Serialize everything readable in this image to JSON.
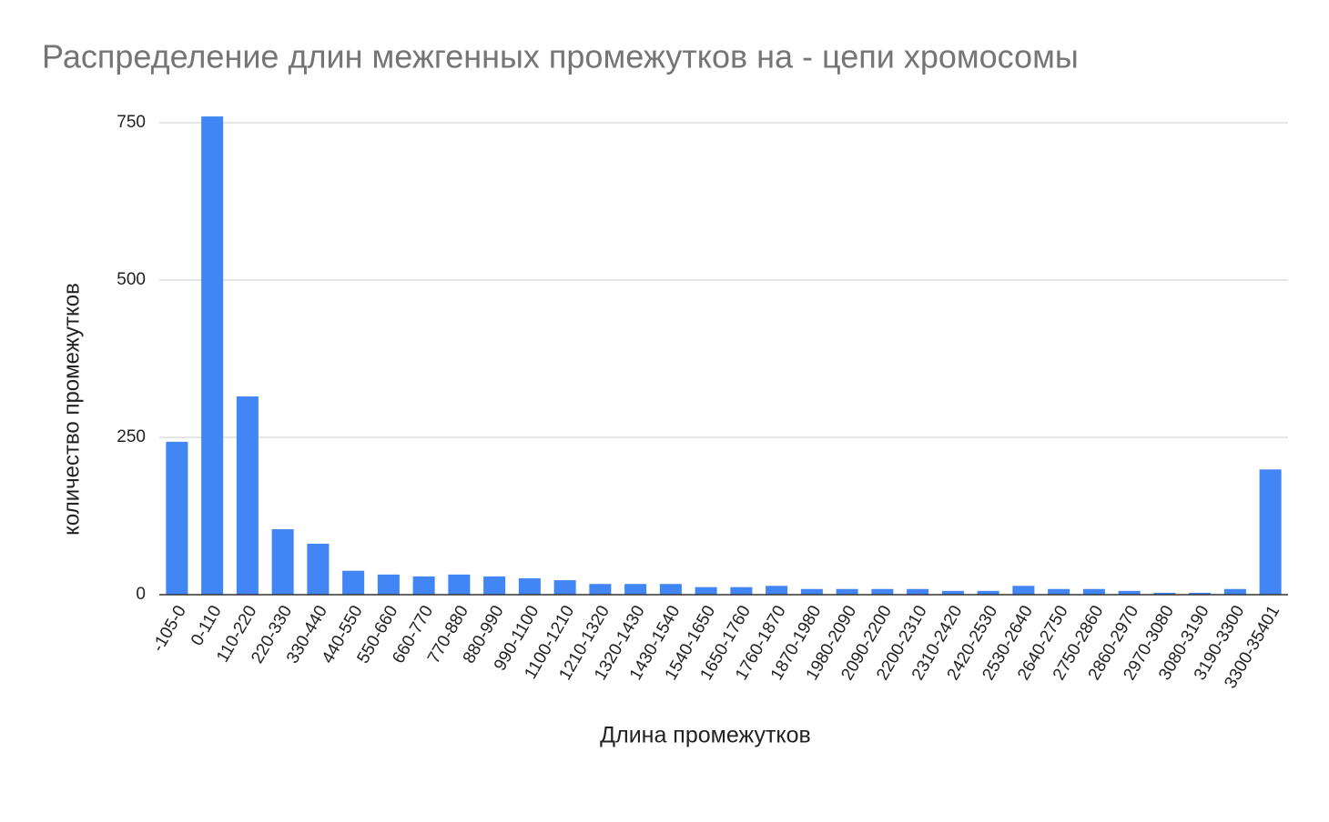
{
  "chart_data": {
    "type": "bar",
    "title": "Распределение длин межгенных промежутков на - цепи хромосомы",
    "x_label": "Длина промежутков",
    "y_label": "количество промежутков",
    "categories": [
      "-105-0",
      "0-110",
      "110-220",
      "220-330",
      "330-440",
      "440-550",
      "550-660",
      "660-770",
      "770-880",
      "880-990",
      "990-1100",
      "1100-1210",
      "1210-1320",
      "1320-1430",
      "1430-1540",
      "1540-1650",
      "1650-1760",
      "1760-1870",
      "1870-1980",
      "1980-2090",
      "2090-2200",
      "2200-2310",
      "2310-2420",
      "2420-2530",
      "2530-2640",
      "2640-2750",
      "2750-2860",
      "2860-2970",
      "2970-3080",
      "3080-3190",
      "3190-3300",
      "3300-35401"
    ],
    "values": [
      243,
      760,
      315,
      104,
      81,
      38,
      32,
      29,
      32,
      29,
      26,
      23,
      17,
      17,
      17,
      12,
      12,
      14,
      9,
      9,
      9,
      9,
      6,
      6,
      14,
      9,
      9,
      6,
      3,
      3,
      9,
      199
    ],
    "color": "#4285f4",
    "ylim": [
      0,
      750
    ],
    "yticks": [
      0,
      250,
      500,
      750
    ],
    "grid": true
  }
}
